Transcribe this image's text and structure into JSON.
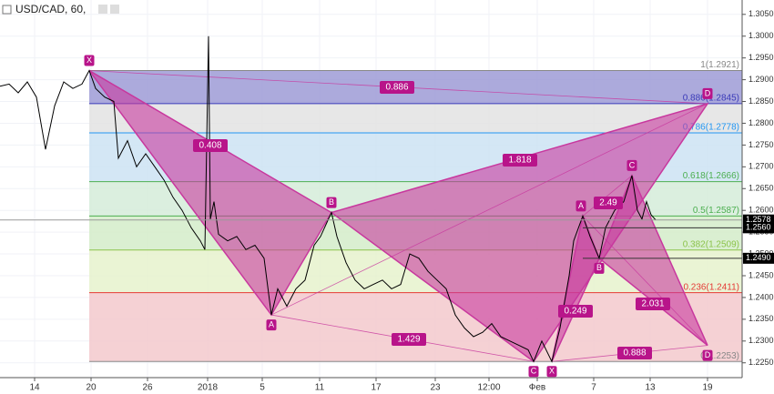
{
  "chart_data": {
    "type": "line",
    "symbol": "USD/CAD, 60,",
    "grid": true,
    "xlim": [
      0,
      81.5
    ],
    "ylim": [
      1.2216,
      1.3083
    ],
    "xticks": [
      {
        "value": 3.8,
        "label": "14"
      },
      {
        "value": 10,
        "label": "20"
      },
      {
        "value": 16.2,
        "label": "26"
      },
      {
        "value": 22.8,
        "label": "2018"
      },
      {
        "value": 28.8,
        "label": "5"
      },
      {
        "value": 35.1,
        "label": "11"
      },
      {
        "value": 41.3,
        "label": "17"
      },
      {
        "value": 47.8,
        "label": "23"
      },
      {
        "value": 53.7,
        "label": "12:00"
      },
      {
        "value": 59,
        "label": "Фев"
      },
      {
        "value": 65.2,
        "label": "7"
      },
      {
        "value": 71.4,
        "label": "13"
      },
      {
        "value": 77.7,
        "label": "19"
      }
    ],
    "yticks": [
      {
        "value": 1.305,
        "label": "1.3050"
      },
      {
        "value": 1.3,
        "label": "1.3000"
      },
      {
        "value": 1.295,
        "label": "1.2950"
      },
      {
        "value": 1.29,
        "label": "1.2900"
      },
      {
        "value": 1.285,
        "label": "1.2850"
      },
      {
        "value": 1.28,
        "label": "1.2800"
      },
      {
        "value": 1.275,
        "label": "1.2750"
      },
      {
        "value": 1.27,
        "label": "1.2700"
      },
      {
        "value": 1.265,
        "label": "1.2650"
      },
      {
        "value": 1.26,
        "label": "1.2600"
      },
      {
        "value": 1.255,
        "label": "1.2550"
      },
      {
        "value": 1.25,
        "label": "1.2500"
      },
      {
        "value": 1.245,
        "label": "1.2450"
      },
      {
        "value": 1.24,
        "label": "1.2400"
      },
      {
        "value": 1.235,
        "label": "1.2350"
      },
      {
        "value": 1.23,
        "label": "1.2300"
      },
      {
        "value": 1.225,
        "label": "1.2250"
      }
    ],
    "x": [
      0,
      1,
      2,
      3,
      4,
      5,
      6,
      7,
      8,
      9,
      9.8,
      10.5,
      11.5,
      12.5,
      13,
      14,
      15,
      16,
      17,
      18,
      19,
      20,
      21,
      22,
      22.5,
      22.9,
      23.1,
      23.5,
      24,
      25,
      26,
      27,
      28,
      29,
      29.8,
      30.5,
      31.5,
      32.5,
      33.5,
      34.5,
      35.2,
      36.4,
      37,
      38,
      39,
      40,
      41,
      42,
      43,
      44,
      45,
      46,
      47,
      48,
      49,
      50,
      51,
      52,
      53,
      54,
      55,
      56,
      57,
      58,
      58.6,
      59.5,
      60.6,
      61.5,
      62.5,
      63,
      64,
      64.8,
      65.8,
      66.5,
      67.5,
      68.5,
      69.4,
      70,
      70.5,
      71,
      71.5,
      72
    ],
    "series": [
      {
        "color": "#000000",
        "values": [
          1.2885,
          1.289,
          1.287,
          1.2895,
          1.286,
          1.274,
          1.284,
          1.2895,
          1.288,
          1.289,
          1.2921,
          1.288,
          1.286,
          1.285,
          1.272,
          1.276,
          1.27,
          1.273,
          1.27,
          1.267,
          1.263,
          1.26,
          1.256,
          1.253,
          1.251,
          1.3,
          1.258,
          1.262,
          1.2545,
          1.253,
          1.254,
          1.251,
          1.252,
          1.249,
          1.236,
          1.242,
          1.238,
          1.242,
          1.244,
          1.252,
          1.254,
          1.2595,
          1.254,
          1.248,
          1.244,
          1.242,
          1.243,
          1.244,
          1.242,
          1.243,
          1.25,
          1.249,
          1.246,
          1.244,
          1.242,
          1.236,
          1.233,
          1.231,
          1.232,
          1.234,
          1.231,
          1.23,
          1.229,
          1.228,
          1.2253,
          1.23,
          1.2253,
          1.233,
          1.245,
          1.253,
          1.2587,
          1.254,
          1.249,
          1.256,
          1.26,
          1.262,
          1.268,
          1.26,
          1.258,
          1.262,
          1.259,
          1.2578
        ]
      }
    ],
    "fib_levels": [
      {
        "label": "1(1.2921)",
        "price": 1.2921,
        "color": "#888888",
        "fill": "#9e9bd6"
      },
      {
        "label": "0.886(1.2845)",
        "price": 1.2845,
        "color": "#3a3ab8",
        "fill": "#e3e3e3"
      },
      {
        "label": "0.786(1.2778)",
        "price": 1.2778,
        "color": "#2196f3",
        "fill": "#cde3f3"
      },
      {
        "label": "0.618(1.2666)",
        "price": 1.2666,
        "color": "#4caf50",
        "fill": "#d5ecd9"
      },
      {
        "label": "0.5(1.2587)",
        "price": 1.2587,
        "color": "#4caf50",
        "fill": "#d3ecc9"
      },
      {
        "label": "0.382(1.2509)",
        "price": 1.2509,
        "color": "#8bc34a",
        "fill": "#e6f2cd"
      },
      {
        "label": "0.236(1.2411)",
        "price": 1.2411,
        "color": "#e53935",
        "fill": "#f3c9cc"
      },
      {
        "label": "0(1.2253)",
        "price": 1.2253,
        "color": "#888888",
        "fill": "#f3c9cc"
      }
    ],
    "fib_start": 9.8,
    "patterns": [
      {
        "points": [
          {
            "label": "X",
            "x": 9.8,
            "price": 1.2921
          },
          {
            "label": "A",
            "x": 29.8,
            "price": 1.236
          },
          {
            "label": "B",
            "x": 36.4,
            "price": 1.2595
          },
          {
            "label": "C",
            "x": 58.6,
            "price": 1.2253
          },
          {
            "label": "D",
            "x": 77.7,
            "price": 1.2845
          }
        ]
      },
      {
        "points": [
          {
            "label": "X",
            "x": 60.6,
            "price": 1.2253
          },
          {
            "label": "A",
            "x": 64,
            "price": 1.2587
          },
          {
            "label": "B",
            "x": 65.8,
            "price": 1.249
          },
          {
            "label": "C",
            "x": 69.4,
            "price": 1.268
          },
          {
            "label": "D",
            "x": 77.7,
            "price": 1.229
          }
        ]
      }
    ],
    "ratios": [
      "0.886",
      "0.408",
      "1.818",
      "1.429",
      "2.49",
      "0.249",
      "2.031",
      "0.888"
    ],
    "price_tags": [
      {
        "label": "1.2578",
        "price": 1.2578
      },
      {
        "label": "1.2560",
        "price": 1.256
      },
      {
        "label": "1.2490",
        "price": 1.249
      }
    ]
  }
}
